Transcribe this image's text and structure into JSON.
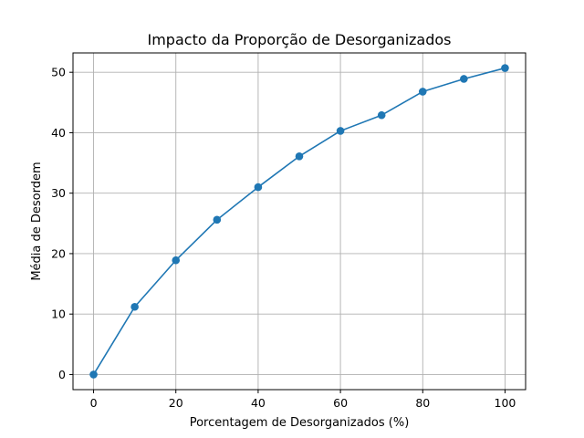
{
  "chart_data": {
    "type": "line",
    "title": "Impacto da Proporção de Desorganizados",
    "xlabel": "Porcentagem de Desorganizados (%)",
    "ylabel": "Média de Desordem",
    "xlim": [
      -5,
      105
    ],
    "ylim": [
      -2.5,
      53.2
    ],
    "xticks": [
      0,
      20,
      40,
      60,
      80,
      100
    ],
    "yticks": [
      0,
      10,
      20,
      30,
      40,
      50
    ],
    "grid": true,
    "marker": "circle",
    "series": [
      {
        "color": "#1f77b4",
        "x": [
          0,
          10,
          20,
          30,
          40,
          50,
          60,
          70,
          80,
          90,
          100
        ],
        "y": [
          0,
          11.2,
          18.9,
          25.6,
          31.0,
          36.1,
          40.3,
          42.9,
          46.8,
          48.9,
          50.7
        ]
      }
    ]
  }
}
